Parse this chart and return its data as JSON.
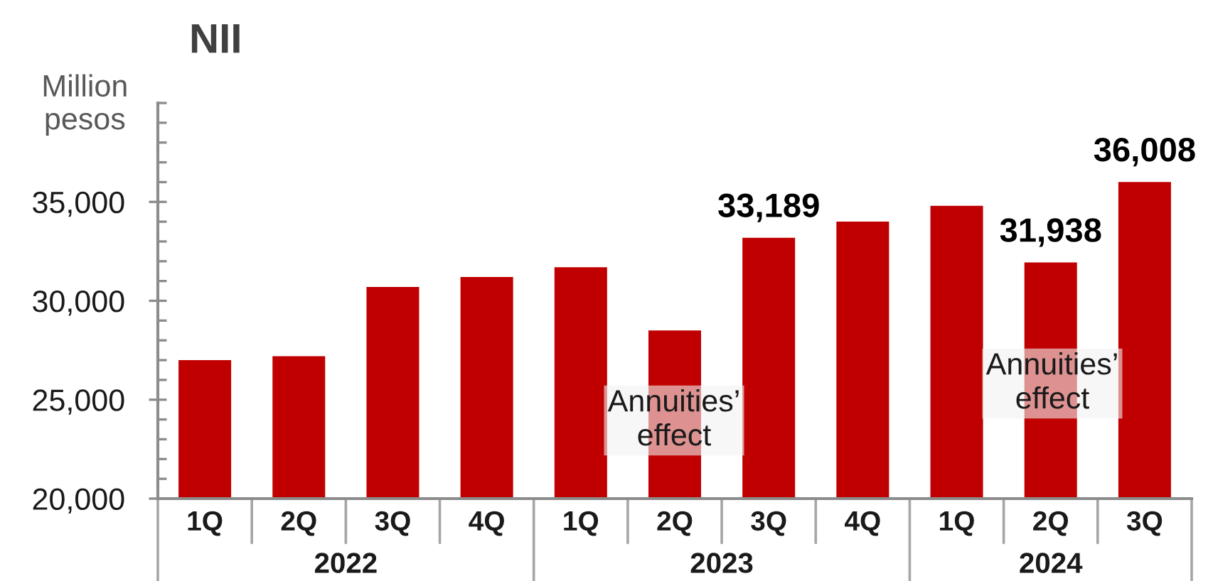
{
  "chart_data": {
    "type": "bar",
    "title": "NII",
    "ylabel": "Million\npesos",
    "categories": [
      "1Q",
      "2Q",
      "3Q",
      "4Q",
      "1Q",
      "2Q",
      "3Q",
      "4Q",
      "1Q",
      "2Q",
      "3Q"
    ],
    "values": [
      27000,
      27200,
      30700,
      31200,
      31700,
      28500,
      33189,
      34000,
      34800,
      31938,
      36008
    ],
    "color": "#c00000",
    "value_labels": [
      null,
      null,
      null,
      null,
      null,
      null,
      "33,189",
      null,
      null,
      "31,938",
      "36,008"
    ],
    "ylim": [
      20000,
      40000
    ],
    "yticks": [
      {
        "value": 20000,
        "label": "20,000"
      },
      {
        "value": 21000,
        "label": null
      },
      {
        "value": 22000,
        "label": null
      },
      {
        "value": 23000,
        "label": null
      },
      {
        "value": 24000,
        "label": null
      },
      {
        "value": 25000,
        "label": "25,000"
      },
      {
        "value": 26000,
        "label": null
      },
      {
        "value": 27000,
        "label": null
      },
      {
        "value": 28000,
        "label": null
      },
      {
        "value": 29000,
        "label": null
      },
      {
        "value": 30000,
        "label": "30,000"
      },
      {
        "value": 31000,
        "label": null
      },
      {
        "value": 32000,
        "label": null
      },
      {
        "value": 33000,
        "label": null
      },
      {
        "value": 34000,
        "label": null
      },
      {
        "value": 35000,
        "label": "35,000"
      },
      {
        "value": 36000,
        "label": null
      },
      {
        "value": 37000,
        "label": null
      },
      {
        "value": 38000,
        "label": null
      },
      {
        "value": 39000,
        "label": null
      },
      {
        "value": 40000,
        "label": null
      }
    ],
    "annotations": [
      "2022",
      "2023",
      "2024",
      "Annuities’\neffect",
      "Annuities’\neffect"
    ]
  }
}
